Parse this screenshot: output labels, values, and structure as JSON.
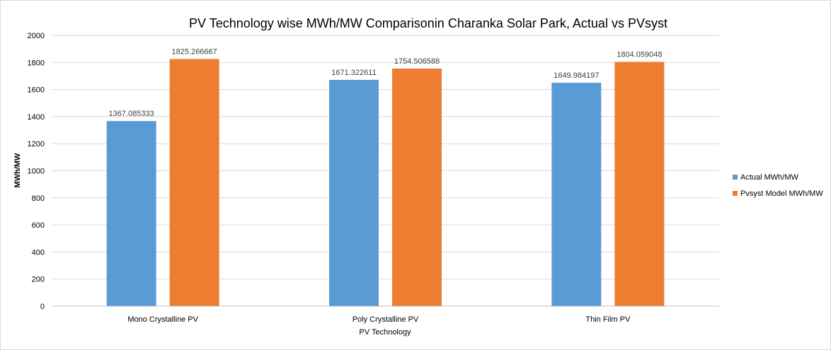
{
  "chart_data": {
    "type": "bar",
    "title": "PV Technology wise MWh/MW Comparisonin Charanka Solar Park, Actual vs  PVsyst",
    "xlabel": "PV Technology",
    "ylabel": "MWh/MW",
    "categories": [
      "Mono Crystalline PV",
      "Poly Crystalline PV",
      "Thin Film PV"
    ],
    "series": [
      {
        "name": "Actual MWh/MW",
        "color": "#5b9bd5",
        "values": [
          1367.085333,
          1671.322611,
          1649.984197
        ],
        "labels": [
          "1367.085333",
          "1671.322611",
          "1649.984197"
        ]
      },
      {
        "name": "Pvsyst Model MWh/MW",
        "color": "#ed7d31",
        "values": [
          1825.266667,
          1754.506588,
          1804.059048
        ],
        "labels": [
          "1825.266667",
          "1754.506588",
          "1804.059048"
        ]
      }
    ],
    "ylim": [
      0,
      2000
    ],
    "yticks": [
      "0",
      "200",
      "400",
      "600",
      "800",
      "1000",
      "1200",
      "1400",
      "1600",
      "1800",
      "2000"
    ],
    "grid": true,
    "legend_position": "right"
  }
}
